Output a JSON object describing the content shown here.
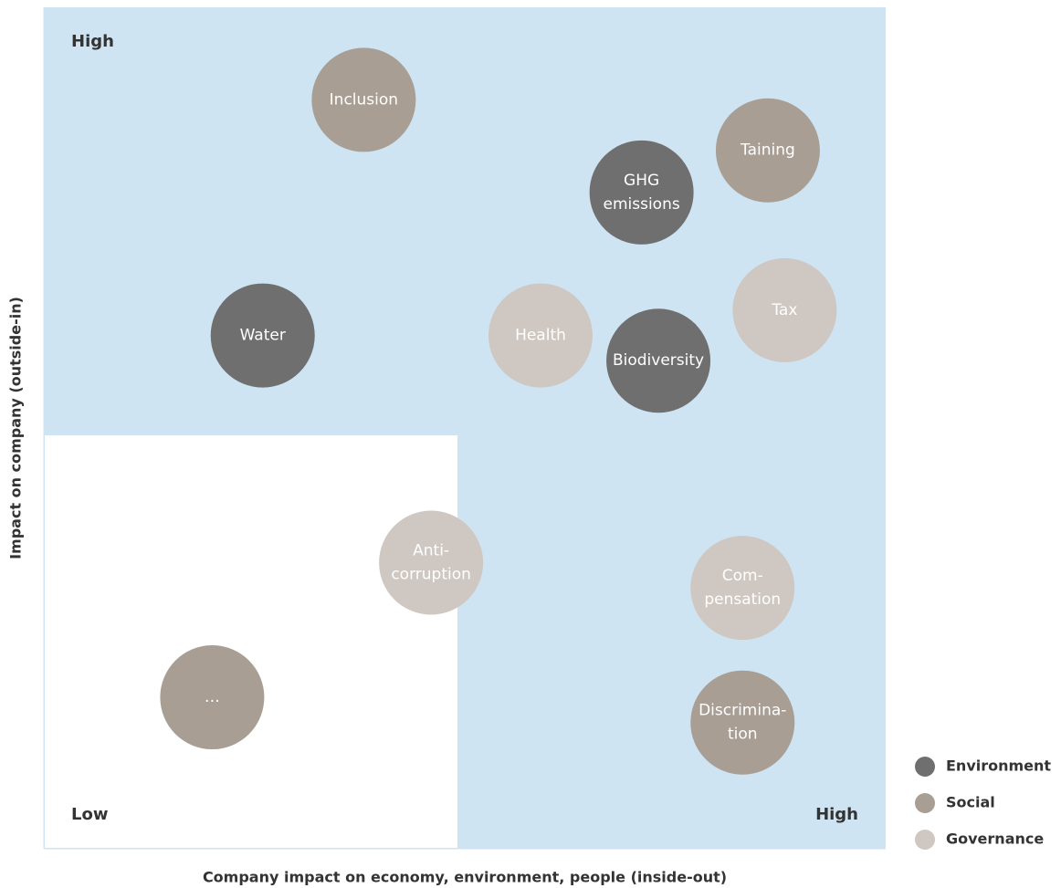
{
  "chart_data": {
    "type": "scatter",
    "xlabel": "Company impact on economy, environment, people (inside-out)",
    "ylabel": "Impact on company (outside-in)",
    "annotations": {
      "top_left": "High",
      "bottom_left": "Low",
      "bottom_right": "High"
    },
    "xlim": [
      0,
      100
    ],
    "ylim": [
      0,
      100
    ],
    "series": [
      {
        "name": "Environment",
        "color": "#6f6f6f",
        "x": [
          71,
          26,
          73
        ],
        "y": [
          78,
          61,
          58
        ],
        "labels": [
          [
            "GHG",
            "emissions"
          ],
          [
            "Water"
          ],
          [
            "Biodiversity"
          ]
        ]
      },
      {
        "name": "Social",
        "color": "#a89e94",
        "x": [
          38,
          86,
          83,
          20
        ],
        "y": [
          89,
          83,
          15,
          18
        ],
        "labels": [
          [
            "Inclusion"
          ],
          [
            "Taining"
          ],
          [
            "Discrimina-",
            "tion"
          ],
          [
            "…"
          ]
        ]
      },
      {
        "name": "Governance",
        "color": "#cfc7c1",
        "x": [
          59,
          88,
          46,
          83
        ],
        "y": [
          61,
          64,
          34,
          31
        ],
        "labels": [
          [
            "Health"
          ],
          [
            "Tax"
          ],
          [
            "Anti-",
            "corruption"
          ],
          [
            "Com-",
            "pensation"
          ]
        ]
      }
    ]
  }
}
